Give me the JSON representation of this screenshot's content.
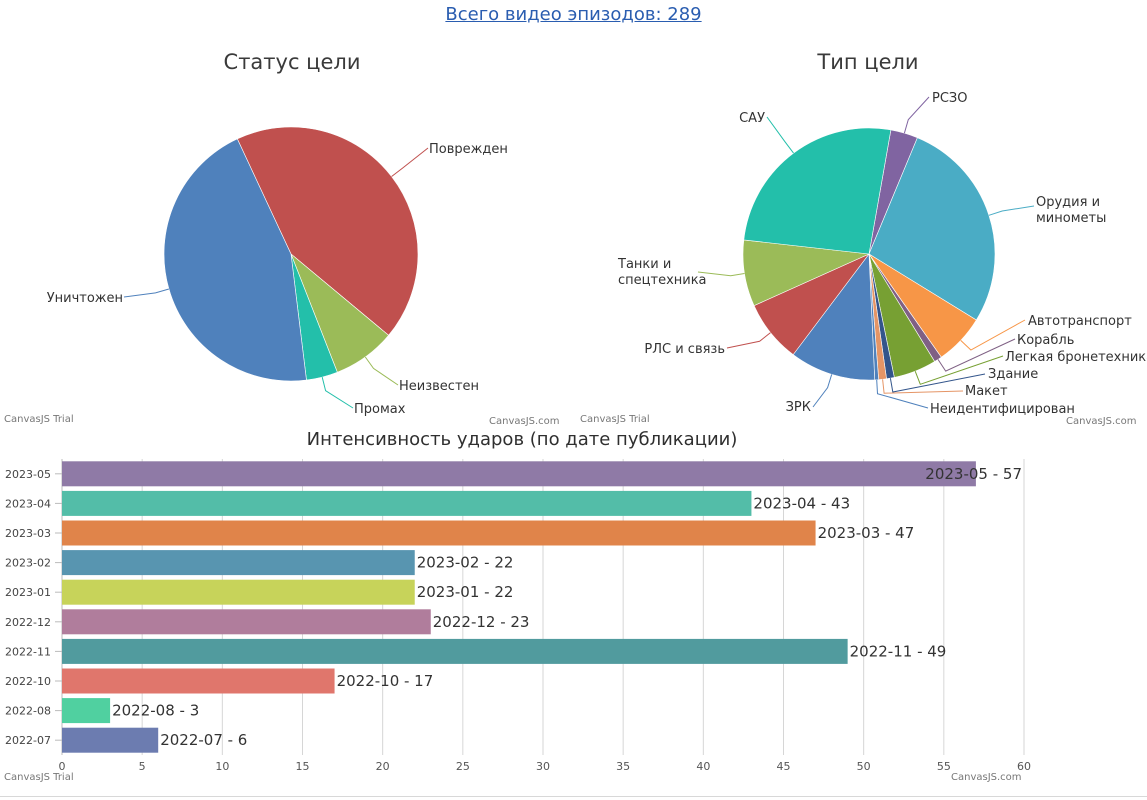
{
  "header": {
    "episodes_link": "Всего видео эпизодов: 289"
  },
  "watermarks": {
    "trial": "CanvasJS Trial",
    "site": "CanvasJS.com"
  },
  "chart_data": [
    {
      "type": "pie",
      "title": "Статус цели",
      "slices": [
        {
          "label": "Поврежден",
          "value": 43,
          "color": "#c0504e"
        },
        {
          "label": "Неизвестен",
          "value": 8,
          "color": "#9bbb58"
        },
        {
          "label": "Промах",
          "value": 4,
          "color": "#23bfaa"
        },
        {
          "label": "Уничтожен",
          "value": 45,
          "color": "#4f81bc"
        }
      ]
    },
    {
      "type": "pie",
      "title": "Тип цели",
      "slices": [
        {
          "label": "РСЗО",
          "value": 3.5,
          "color": "#8064a1"
        },
        {
          "label": "Орудия и минометы",
          "value": 27.5,
          "color": "#4aacc5"
        },
        {
          "label": "Автотранспорт",
          "value": 6.5,
          "color": "#f79647"
        },
        {
          "label": "Корабль",
          "value": 1,
          "color": "#7f6084"
        },
        {
          "label": "Легкая бронетехника",
          "value": 5.5,
          "color": "#77a033"
        },
        {
          "label": "Здание",
          "value": 1,
          "color": "#33558b"
        },
        {
          "label": "Макет",
          "value": 1,
          "color": "#e59566"
        },
        {
          "label": "Неидентифицирован",
          "value": 0.5,
          "color": "#4f81bc"
        },
        {
          "label": "ЗРК",
          "value": 11,
          "color": "#4f81bc"
        },
        {
          "label": "РЛС и связь",
          "value": 8,
          "color": "#c0504e"
        },
        {
          "label": "Танки и спецтехника",
          "value": 8.5,
          "color": "#9bbb58"
        },
        {
          "label": "САУ",
          "value": 26,
          "color": "#23bfaa"
        }
      ]
    },
    {
      "type": "bar",
      "title": "Интенсивность ударов (по дате публикации)",
      "categories": [
        "2023-05",
        "2023-04",
        "2023-03",
        "2023-02",
        "2023-01",
        "2022-12",
        "2022-11",
        "2022-10",
        "2022-08",
        "2022-07"
      ],
      "values": [
        57,
        43,
        47,
        22,
        22,
        23,
        49,
        17,
        3,
        6
      ],
      "labels": [
        "2023-05 - 57",
        "2023-04 - 43",
        "2023-03 - 47",
        "2023-02 - 22",
        "2023-01 - 22",
        "2022-12 - 23",
        "2022-11 - 49",
        "2022-10 - 17",
        "2022-08 - 3",
        "2022-07 - 6"
      ],
      "colors": [
        "#8f7aa6",
        "#53bda8",
        "#e0844a",
        "#5895b0",
        "#c7d35a",
        "#b07d9c",
        "#519b9e",
        "#e0766c",
        "#50d0a0",
        "#6c7cb0"
      ],
      "xlim": [
        0,
        60
      ],
      "ticks": [
        "0",
        "5",
        "10",
        "15",
        "20",
        "25",
        "30",
        "35",
        "40",
        "45",
        "50",
        "55",
        "60"
      ],
      "grid": true
    }
  ]
}
